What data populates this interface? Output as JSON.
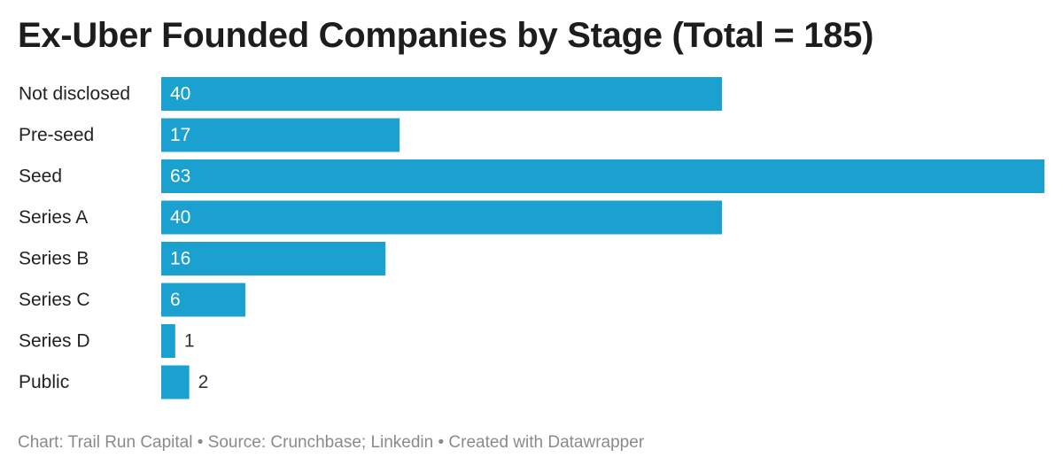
{
  "chart_data": {
    "type": "bar",
    "orientation": "horizontal",
    "title": "Ex-Uber Founded Companies by Stage (Total = 185)",
    "categories": [
      "Not disclosed",
      "Pre-seed",
      "Seed",
      "Series A",
      "Series B",
      "Series C",
      "Series D",
      "Public"
    ],
    "values": [
      40,
      17,
      63,
      40,
      16,
      6,
      1,
      2
    ],
    "xlim": [
      0,
      63
    ],
    "grid": false,
    "legend": "none",
    "bar_color": "#1ba1cf",
    "label_color_inside": "#ffffff",
    "label_color_outside": "#333333"
  },
  "footer": {
    "text": "Chart: Trail Run Capital • Source: Crunchbase; Linkedin • Created with Datawrapper"
  }
}
